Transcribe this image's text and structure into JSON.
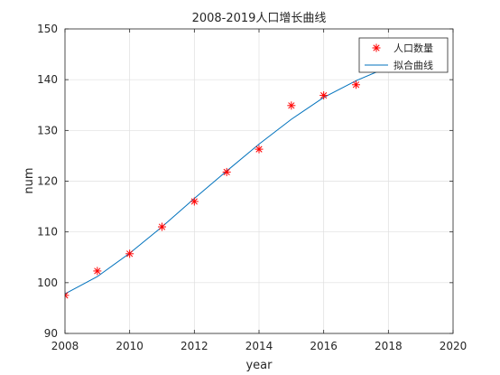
{
  "chart_data": {
    "type": "scatter",
    "title": "2008-2019人口增长曲线",
    "xlabel": "year",
    "ylabel": "num",
    "xlim": [
      2008,
      2020
    ],
    "ylim": [
      90,
      150
    ],
    "xticks": [
      2008,
      2010,
      2012,
      2014,
      2016,
      2018,
      2020
    ],
    "yticks": [
      90,
      100,
      110,
      120,
      130,
      140,
      150
    ],
    "grid": true,
    "legend_position": "top-right",
    "series": [
      {
        "name": "人口数量",
        "kind": "markers",
        "marker": "asterisk",
        "color": "#ff0000",
        "x": [
          2008,
          2009,
          2010,
          2011,
          2012,
          2013,
          2014,
          2015,
          2016,
          2017,
          2018,
          2019
        ],
        "y": [
          97.5,
          102.3,
          105.7,
          111.0,
          116.0,
          121.8,
          126.3,
          134.9,
          136.9,
          139.0,
          143.5,
          147.0
        ]
      },
      {
        "name": "拟合曲线",
        "kind": "line",
        "color": "#0072bd",
        "x": [
          2008,
          2009,
          2010,
          2011,
          2012,
          2013,
          2014,
          2015,
          2016,
          2017,
          2018,
          2019
        ],
        "y": [
          97.8,
          101.2,
          105.8,
          111.0,
          116.6,
          122.0,
          127.3,
          132.2,
          136.5,
          139.8,
          142.5,
          145.0
        ]
      }
    ]
  }
}
